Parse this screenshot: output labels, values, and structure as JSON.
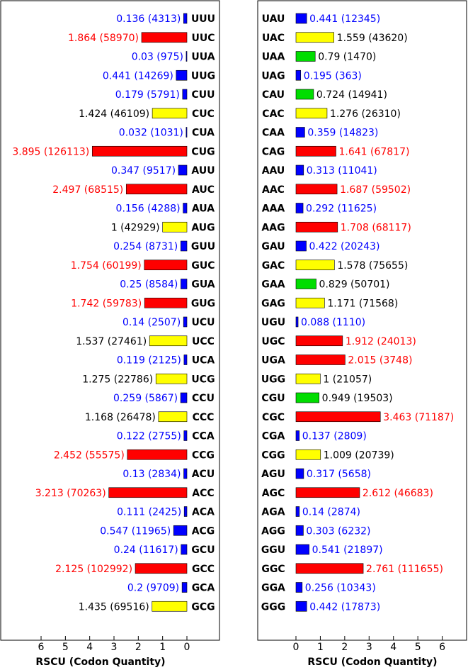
{
  "chart_data": [
    {
      "type": "bar",
      "orientation": "horizontal",
      "direction": "right-to-left",
      "xlabel": "RSCU (Codon Quantity)",
      "xlim": [
        0,
        7
      ],
      "xticks": [
        0,
        1,
        2,
        3,
        4,
        5,
        6
      ],
      "grid": false,
      "rows": [
        {
          "codon": "UUU",
          "rscu": 0.136,
          "count": 4313,
          "label": "0.136 (4313)",
          "color": "#0000ff"
        },
        {
          "codon": "UUC",
          "rscu": 1.864,
          "count": 58970,
          "label": "1.864 (58970)",
          "color": "#ff0000"
        },
        {
          "codon": "UUA",
          "rscu": 0.03,
          "count": 975,
          "label": "0.03 (975)",
          "color": "#0000ff"
        },
        {
          "codon": "UUG",
          "rscu": 0.441,
          "count": 14269,
          "label": "0.441 (14269)",
          "color": "#0000ff"
        },
        {
          "codon": "CUU",
          "rscu": 0.179,
          "count": 5791,
          "label": "0.179 (5791)",
          "color": "#0000ff"
        },
        {
          "codon": "CUC",
          "rscu": 1.424,
          "count": 46109,
          "label": "1.424 (46109)",
          "color": "#ffff00"
        },
        {
          "codon": "CUA",
          "rscu": 0.032,
          "count": 1031,
          "label": "0.032 (1031)",
          "color": "#0000ff"
        },
        {
          "codon": "CUG",
          "rscu": 3.895,
          "count": 126113,
          "label": "3.895 (126113)",
          "color": "#ff0000"
        },
        {
          "codon": "AUU",
          "rscu": 0.347,
          "count": 9517,
          "label": "0.347 (9517)",
          "color": "#0000ff"
        },
        {
          "codon": "AUC",
          "rscu": 2.497,
          "count": 68515,
          "label": "2.497 (68515)",
          "color": "#ff0000"
        },
        {
          "codon": "AUA",
          "rscu": 0.156,
          "count": 4288,
          "label": "0.156 (4288)",
          "color": "#0000ff"
        },
        {
          "codon": "AUG",
          "rscu": 1,
          "count": 42929,
          "label": "1 (42929)",
          "color": "#ffff00"
        },
        {
          "codon": "GUU",
          "rscu": 0.254,
          "count": 8731,
          "label": "0.254 (8731)",
          "color": "#0000ff"
        },
        {
          "codon": "GUC",
          "rscu": 1.754,
          "count": 60199,
          "label": "1.754 (60199)",
          "color": "#ff0000"
        },
        {
          "codon": "GUA",
          "rscu": 0.25,
          "count": 8584,
          "label": "0.25 (8584)",
          "color": "#0000ff"
        },
        {
          "codon": "GUG",
          "rscu": 1.742,
          "count": 59783,
          "label": "1.742 (59783)",
          "color": "#ff0000"
        },
        {
          "codon": "UCU",
          "rscu": 0.14,
          "count": 2507,
          "label": "0.14 (2507)",
          "color": "#0000ff"
        },
        {
          "codon": "UCC",
          "rscu": 1.537,
          "count": 27461,
          "label": "1.537 (27461)",
          "color": "#ffff00"
        },
        {
          "codon": "UCA",
          "rscu": 0.119,
          "count": 2125,
          "label": "0.119 (2125)",
          "color": "#0000ff"
        },
        {
          "codon": "UCG",
          "rscu": 1.275,
          "count": 22786,
          "label": "1.275 (22786)",
          "color": "#ffff00"
        },
        {
          "codon": "CCU",
          "rscu": 0.259,
          "count": 5867,
          "label": "0.259 (5867)",
          "color": "#0000ff"
        },
        {
          "codon": "CCC",
          "rscu": 1.168,
          "count": 26478,
          "label": "1.168 (26478)",
          "color": "#ffff00"
        },
        {
          "codon": "CCA",
          "rscu": 0.122,
          "count": 2755,
          "label": "0.122 (2755)",
          "color": "#0000ff"
        },
        {
          "codon": "CCG",
          "rscu": 2.452,
          "count": 55575,
          "label": "2.452 (55575)",
          "color": "#ff0000"
        },
        {
          "codon": "ACU",
          "rscu": 0.13,
          "count": 2834,
          "label": "0.13 (2834)",
          "color": "#0000ff"
        },
        {
          "codon": "ACC",
          "rscu": 3.213,
          "count": 70263,
          "label": "3.213 (70263)",
          "color": "#ff0000"
        },
        {
          "codon": "ACA",
          "rscu": 0.111,
          "count": 2425,
          "label": "0.111 (2425)",
          "color": "#0000ff"
        },
        {
          "codon": "ACG",
          "rscu": 0.547,
          "count": 11965,
          "label": "0.547 (11965)",
          "color": "#0000ff"
        },
        {
          "codon": "GCU",
          "rscu": 0.24,
          "count": 11617,
          "label": "0.24 (11617)",
          "color": "#0000ff"
        },
        {
          "codon": "GCC",
          "rscu": 2.125,
          "count": 102992,
          "label": "2.125 (102992)",
          "color": "#ff0000"
        },
        {
          "codon": "GCA",
          "rscu": 0.2,
          "count": 9709,
          "label": "0.2 (9709)",
          "color": "#0000ff"
        },
        {
          "codon": "GCG",
          "rscu": 1.435,
          "count": 69516,
          "label": "1.435 (69516)",
          "color": "#ffff00"
        }
      ]
    },
    {
      "type": "bar",
      "orientation": "horizontal",
      "direction": "left-to-right",
      "xlabel": "RSCU (Codon Quantity)",
      "xlim": [
        0,
        7
      ],
      "xticks": [
        0,
        1,
        2,
        3,
        4,
        5,
        6
      ],
      "grid": false,
      "rows": [
        {
          "codon": "UAU",
          "rscu": 0.441,
          "count": 12345,
          "label": "0.441 (12345)",
          "color": "#0000ff"
        },
        {
          "codon": "UAC",
          "rscu": 1.559,
          "count": 43620,
          "label": "1.559 (43620)",
          "color": "#ffff00"
        },
        {
          "codon": "UAA",
          "rscu": 0.79,
          "count": 1470,
          "label": "0.79 (1470)",
          "color": "#00dd00"
        },
        {
          "codon": "UAG",
          "rscu": 0.195,
          "count": 363,
          "label": "0.195 (363)",
          "color": "#0000ff"
        },
        {
          "codon": "CAU",
          "rscu": 0.724,
          "count": 14941,
          "label": "0.724 (14941)",
          "color": "#00dd00"
        },
        {
          "codon": "CAC",
          "rscu": 1.276,
          "count": 26310,
          "label": "1.276 (26310)",
          "color": "#ffff00"
        },
        {
          "codon": "CAA",
          "rscu": 0.359,
          "count": 14823,
          "label": "0.359 (14823)",
          "color": "#0000ff"
        },
        {
          "codon": "CAG",
          "rscu": 1.641,
          "count": 67817,
          "label": "1.641 (67817)",
          "color": "#ff0000"
        },
        {
          "codon": "AAU",
          "rscu": 0.313,
          "count": 11041,
          "label": "0.313 (11041)",
          "color": "#0000ff"
        },
        {
          "codon": "AAC",
          "rscu": 1.687,
          "count": 59502,
          "label": "1.687 (59502)",
          "color": "#ff0000"
        },
        {
          "codon": "AAA",
          "rscu": 0.292,
          "count": 11625,
          "label": "0.292 (11625)",
          "color": "#0000ff"
        },
        {
          "codon": "AAG",
          "rscu": 1.708,
          "count": 68117,
          "label": "1.708 (68117)",
          "color": "#ff0000"
        },
        {
          "codon": "GAU",
          "rscu": 0.422,
          "count": 20243,
          "label": "0.422 (20243)",
          "color": "#0000ff"
        },
        {
          "codon": "GAC",
          "rscu": 1.578,
          "count": 75655,
          "label": "1.578 (75655)",
          "color": "#ffff00"
        },
        {
          "codon": "GAA",
          "rscu": 0.829,
          "count": 50701,
          "label": "0.829 (50701)",
          "color": "#00dd00"
        },
        {
          "codon": "GAG",
          "rscu": 1.171,
          "count": 71568,
          "label": "1.171 (71568)",
          "color": "#ffff00"
        },
        {
          "codon": "UGU",
          "rscu": 0.088,
          "count": 1110,
          "label": "0.088 (1110)",
          "color": "#0000ff"
        },
        {
          "codon": "UGC",
          "rscu": 1.912,
          "count": 24013,
          "label": "1.912 (24013)",
          "color": "#ff0000"
        },
        {
          "codon": "UGA",
          "rscu": 2.015,
          "count": 3748,
          "label": "2.015 (3748)",
          "color": "#ff0000"
        },
        {
          "codon": "UGG",
          "rscu": 1,
          "count": 21057,
          "label": "1 (21057)",
          "color": "#ffff00"
        },
        {
          "codon": "CGU",
          "rscu": 0.949,
          "count": 19503,
          "label": "0.949 (19503)",
          "color": "#00dd00"
        },
        {
          "codon": "CGC",
          "rscu": 3.463,
          "count": 71187,
          "label": "3.463 (71187)",
          "color": "#ff0000"
        },
        {
          "codon": "CGA",
          "rscu": 0.137,
          "count": 2809,
          "label": "0.137 (2809)",
          "color": "#0000ff"
        },
        {
          "codon": "CGG",
          "rscu": 1.009,
          "count": 20739,
          "label": "1.009 (20739)",
          "color": "#ffff00"
        },
        {
          "codon": "AGU",
          "rscu": 0.317,
          "count": 5658,
          "label": "0.317 (5658)",
          "color": "#0000ff"
        },
        {
          "codon": "AGC",
          "rscu": 2.612,
          "count": 46683,
          "label": "2.612 (46683)",
          "color": "#ff0000"
        },
        {
          "codon": "AGA",
          "rscu": 0.14,
          "count": 2874,
          "label": "0.14 (2874)",
          "color": "#0000ff"
        },
        {
          "codon": "AGG",
          "rscu": 0.303,
          "count": 6232,
          "label": "0.303 (6232)",
          "color": "#0000ff"
        },
        {
          "codon": "GGU",
          "rscu": 0.541,
          "count": 21897,
          "label": "0.541 (21897)",
          "color": "#0000ff"
        },
        {
          "codon": "GGC",
          "rscu": 2.761,
          "count": 111655,
          "label": "2.761 (111655)",
          "color": "#ff0000"
        },
        {
          "codon": "GGA",
          "rscu": 0.256,
          "count": 10343,
          "label": "0.256 (10343)",
          "color": "#0000ff"
        },
        {
          "codon": "GGG",
          "rscu": 0.442,
          "count": 17873,
          "label": "0.442 (17873)",
          "color": "#0000ff"
        }
      ]
    }
  ]
}
